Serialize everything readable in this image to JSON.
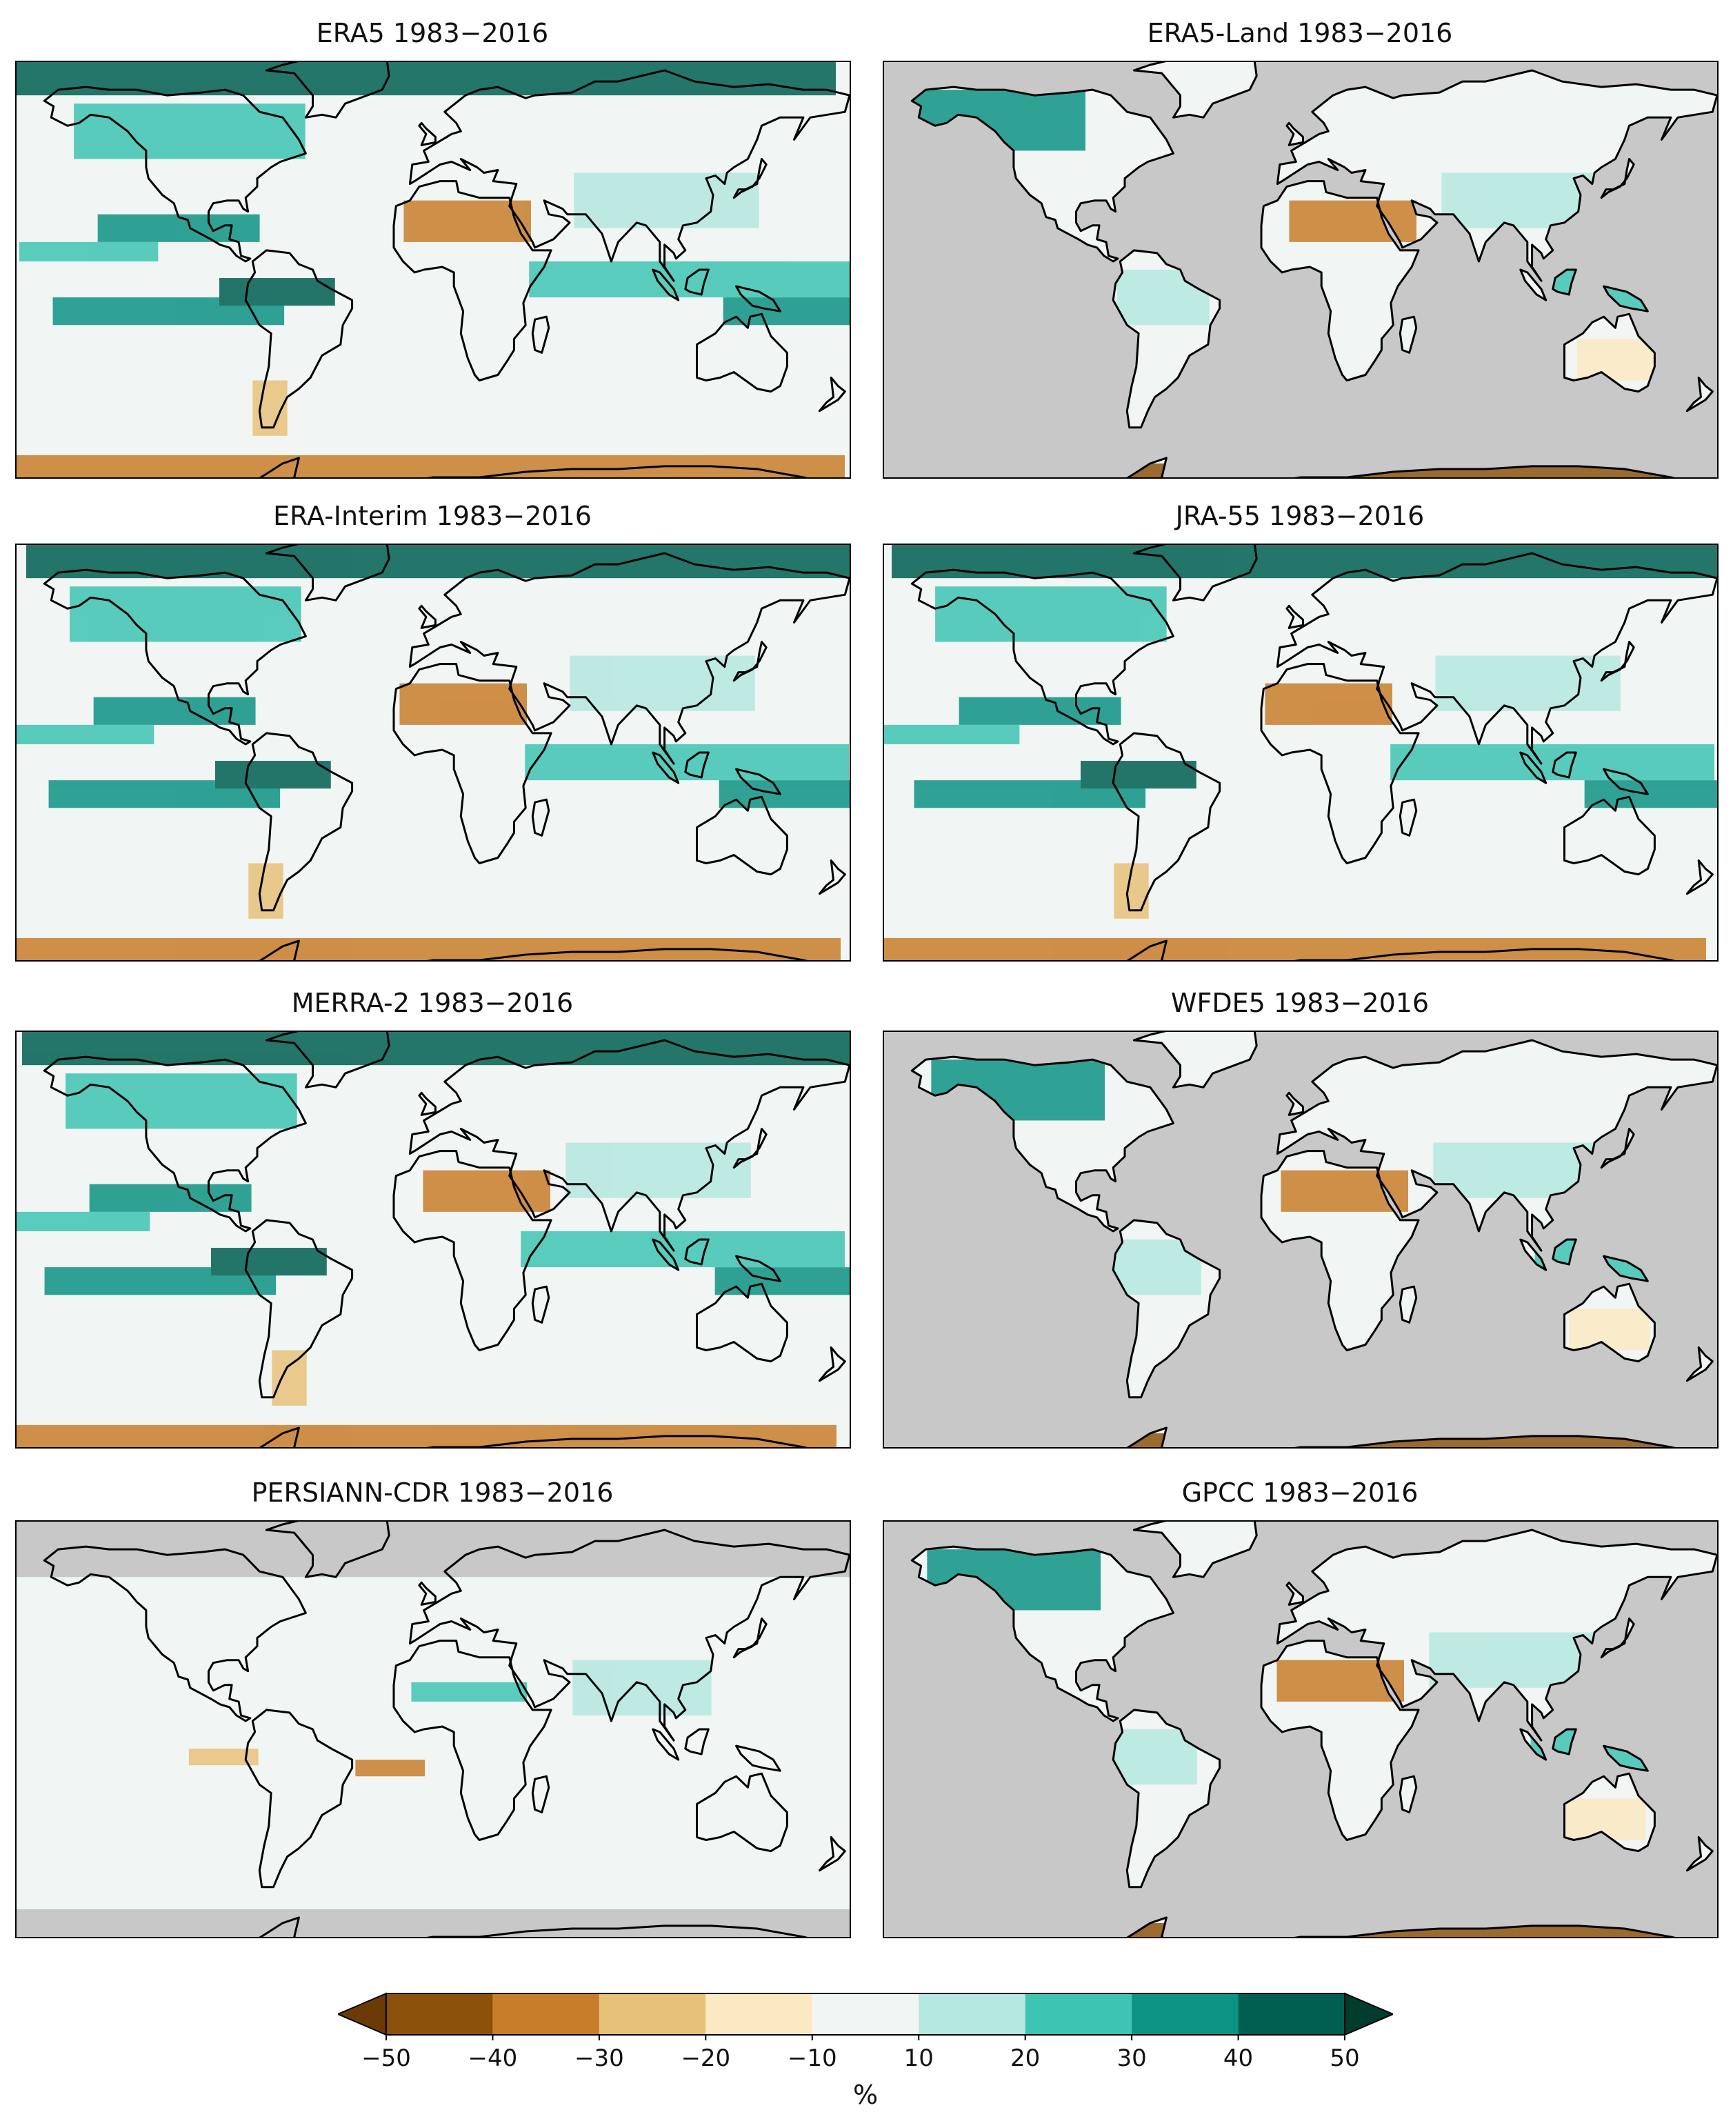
{
  "panels": [
    {
      "title": "ERA5 1983−2016",
      "coverage": "global"
    },
    {
      "title": "ERA5-Land 1983−2016",
      "coverage": "land"
    },
    {
      "title": "ERA-Interim 1983−2016",
      "coverage": "global"
    },
    {
      "title": "JRA-55 1983−2016",
      "coverage": "global"
    },
    {
      "title": "MERRA-2 1983−2016",
      "coverage": "global"
    },
    {
      "title": "WFDE5 1983−2016",
      "coverage": "land"
    },
    {
      "title": "PERSIANN-CDR 1983−2016",
      "coverage": "60S-60N"
    },
    {
      "title": "GPCC 1983−2016",
      "coverage": "land"
    }
  ],
  "colorbar": {
    "ticks": [
      "−50",
      "−40",
      "−30",
      "−20",
      "−10",
      "10",
      "20",
      "30",
      "40",
      "50"
    ],
    "unit": "%",
    "colors": [
      "#8c510a",
      "#c87d2a",
      "#e8c179",
      "#fbe9c2",
      "#f1f5f4",
      "#b5e8e0",
      "#3ec4b3",
      "#0d9384",
      "#015f51"
    ],
    "extend_low": "#6b3a06",
    "extend_high": "#003c30"
  },
  "colors": {
    "missing": "#c8c8c8",
    "coastline": "#000000"
  }
}
